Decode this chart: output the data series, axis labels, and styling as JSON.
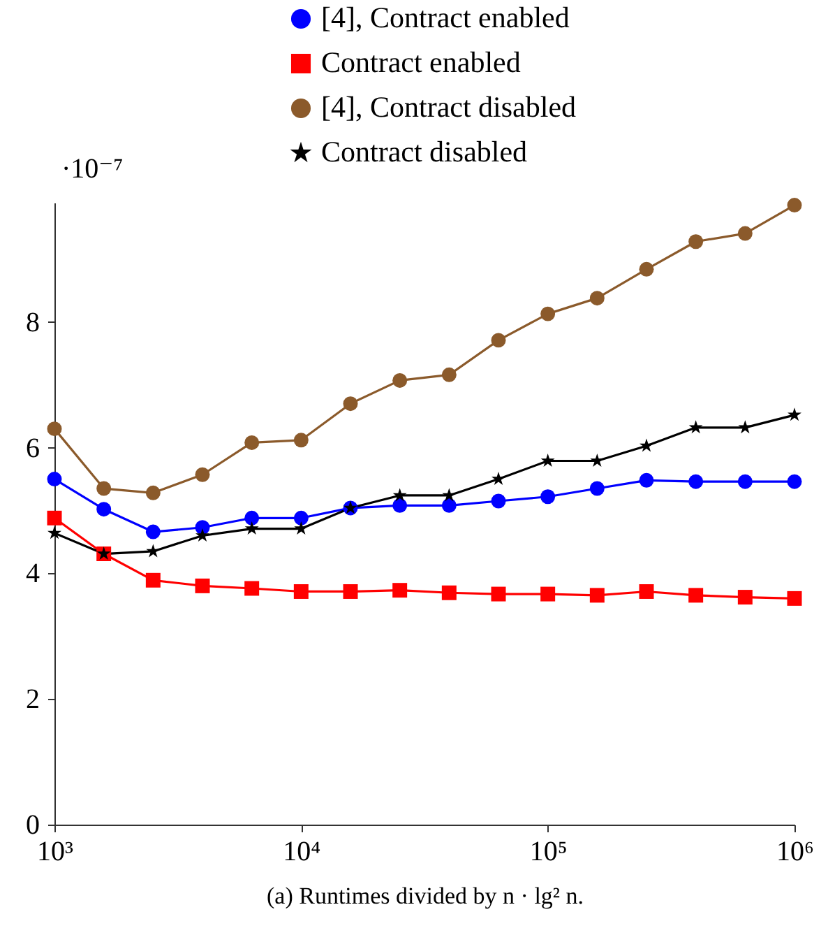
{
  "chart_data": {
    "type": "line",
    "xlabel": "(a) Runtimes divided by n · lg² n.",
    "annotations": [
      "·10⁻⁷"
    ],
    "x": [
      1000,
      1585,
      2512,
      3981,
      6310,
      10000,
      15849,
      25119,
      39811,
      63096,
      100000,
      158489,
      251189,
      398107,
      630957,
      1000000
    ],
    "log": "x",
    "xlim": [
      1000,
      1000000
    ],
    "xticks": [
      {
        "value": 1000,
        "label": "10³"
      },
      {
        "value": 10000,
        "label": "10⁴"
      },
      {
        "value": 100000,
        "label": "10⁵"
      },
      {
        "value": 1000000,
        "label": "10⁶"
      }
    ],
    "ylim": [
      0,
      9.9
    ],
    "yticks": [
      0,
      2,
      4,
      6,
      8
    ],
    "legend": "top right",
    "grid": false,
    "series": [
      {
        "name": "[4], Contract enabled",
        "color": "#0000ff",
        "marker": "circle",
        "values": [
          5.5,
          5.02,
          4.66,
          4.73,
          4.88,
          4.88,
          5.04,
          5.08,
          5.08,
          5.15,
          5.22,
          5.35,
          5.48,
          5.46,
          5.46,
          5.46
        ]
      },
      {
        "name": "Contract enabled",
        "color": "#ff0000",
        "marker": "square",
        "values": [
          4.88,
          4.31,
          3.89,
          3.8,
          3.76,
          3.71,
          3.71,
          3.73,
          3.69,
          3.67,
          3.67,
          3.65,
          3.71,
          3.65,
          3.62,
          3.6
        ]
      },
      {
        "name": "[4], Contract disabled",
        "color": "#8b5a2b",
        "marker": "circle",
        "values": [
          6.3,
          5.35,
          5.28,
          5.57,
          6.08,
          6.12,
          6.7,
          7.07,
          7.16,
          7.71,
          8.13,
          8.38,
          8.84,
          9.28,
          9.41,
          9.86
        ]
      },
      {
        "name": "Contract disabled",
        "color": "#000000",
        "marker": "star",
        "values": [
          4.64,
          4.31,
          4.35,
          4.6,
          4.71,
          4.71,
          5.04,
          5.24,
          5.24,
          5.5,
          5.79,
          5.79,
          6.03,
          6.32,
          6.32,
          6.52
        ]
      }
    ]
  }
}
